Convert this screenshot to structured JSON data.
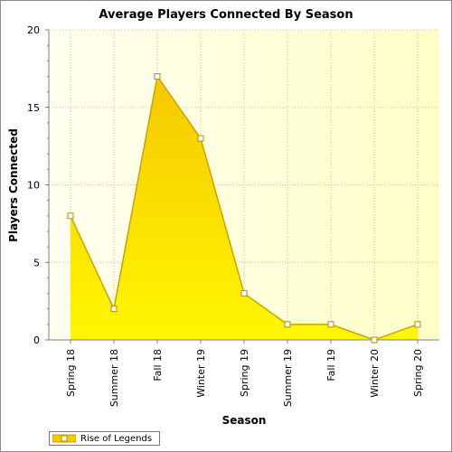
{
  "chart_data": {
    "type": "area",
    "title": "Average Players Connected By Season",
    "xlabel": "Season",
    "ylabel": "Players Connected",
    "categories": [
      "Spring 18",
      "Summer 18",
      "Fall 18",
      "Winter 19",
      "Spring 19",
      "Summer 19",
      "Fall 19",
      "Winter 20",
      "Spring 20"
    ],
    "series": [
      {
        "name": "Rise of Legends",
        "values": [
          8,
          2,
          17,
          13,
          3,
          1,
          1,
          0,
          1
        ]
      }
    ],
    "ylim": [
      0,
      20
    ],
    "yticks": [
      0,
      5,
      10,
      15,
      20
    ],
    "grid": true,
    "legend_position": "bottom-left",
    "colors": {
      "fill_top": "#f5c800",
      "fill_bottom": "#fff700",
      "line": "#c9a400",
      "marker_fill": "#ffffff",
      "marker_stroke": "#b09000",
      "plot_bg_left": "#fffff0",
      "plot_bg_right": "#ffffc8",
      "grid": "#c8c8a0"
    }
  }
}
